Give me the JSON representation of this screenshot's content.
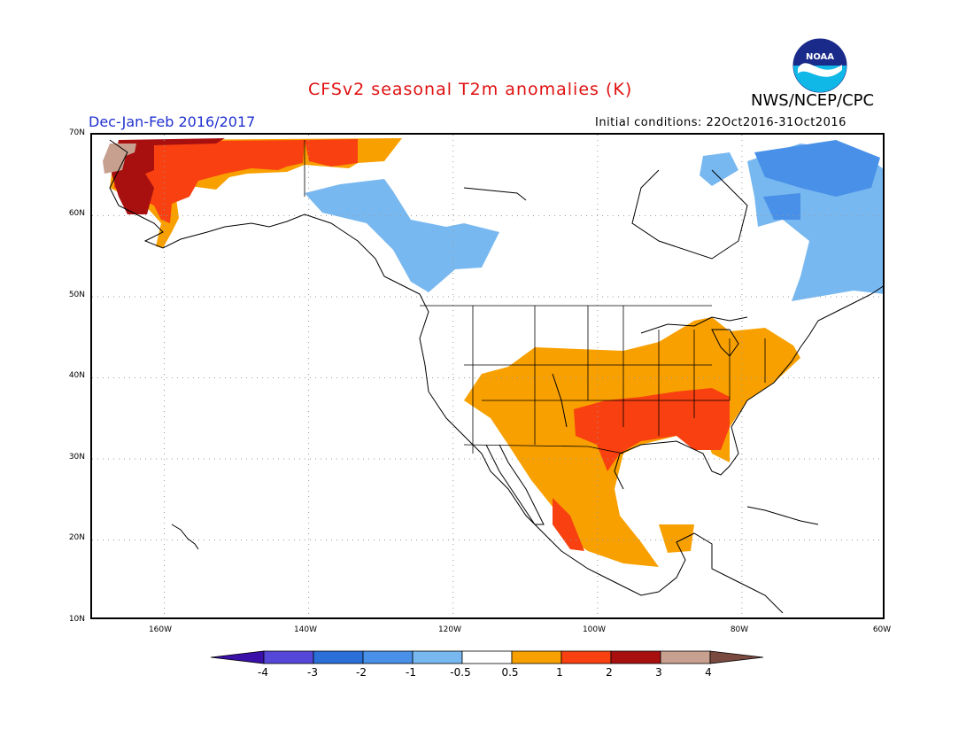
{
  "title": "CFSv2 seasonal T2m anomalies (K)",
  "organization": "NWS/NCEP/CPC",
  "logo_text": "NOAA",
  "period": "Dec-Jan-Feb 2016/2017",
  "initial_conditions": "Initial conditions: 22Oct2016-31Oct2016",
  "map": {
    "projection": "latitude-longitude",
    "lat_range": [
      10,
      70
    ],
    "lon_range": [
      -170,
      -60
    ],
    "grid": "dotted",
    "lat_labels": [
      "70N",
      "60N",
      "50N",
      "40N",
      "30N",
      "20N",
      "10N"
    ],
    "lon_labels": [
      "160W",
      "140W",
      "120W",
      "100W",
      "80W",
      "60W"
    ]
  },
  "colorbar": {
    "labels": [
      "-4",
      "-3",
      "-2",
      "-1",
      "-0.5",
      "0.5",
      "1",
      "2",
      "3",
      "4"
    ],
    "colors": [
      "#3a10a8",
      "#5548d8",
      "#2a70d8",
      "#4890e8",
      "#78b8f0",
      "#ffffff",
      "#f8a000",
      "#f84010",
      "#a81010",
      "#c8a090",
      "#7a4a40"
    ],
    "units": "K"
  },
  "anomaly_regions": [
    {
      "name": "Alaska west",
      "level": 2,
      "color": "#f84010"
    },
    {
      "name": "Alaska far west",
      "level": 3,
      "color": "#a81010"
    },
    {
      "name": "Alaska interior",
      "level": 1,
      "color": "#f8a000"
    },
    {
      "name": "Western Canada",
      "level": -1,
      "color": "#78b8f0"
    },
    {
      "name": "Eastern Canada",
      "level": -1,
      "color": "#78b8f0"
    },
    {
      "name": "Labrador north",
      "level": -2,
      "color": "#4890e8"
    },
    {
      "name": "Southern United States and Mexico",
      "level": 1,
      "color": "#f8a000"
    },
    {
      "name": "South-central United States",
      "level": 2,
      "color": "#f84010"
    }
  ]
}
